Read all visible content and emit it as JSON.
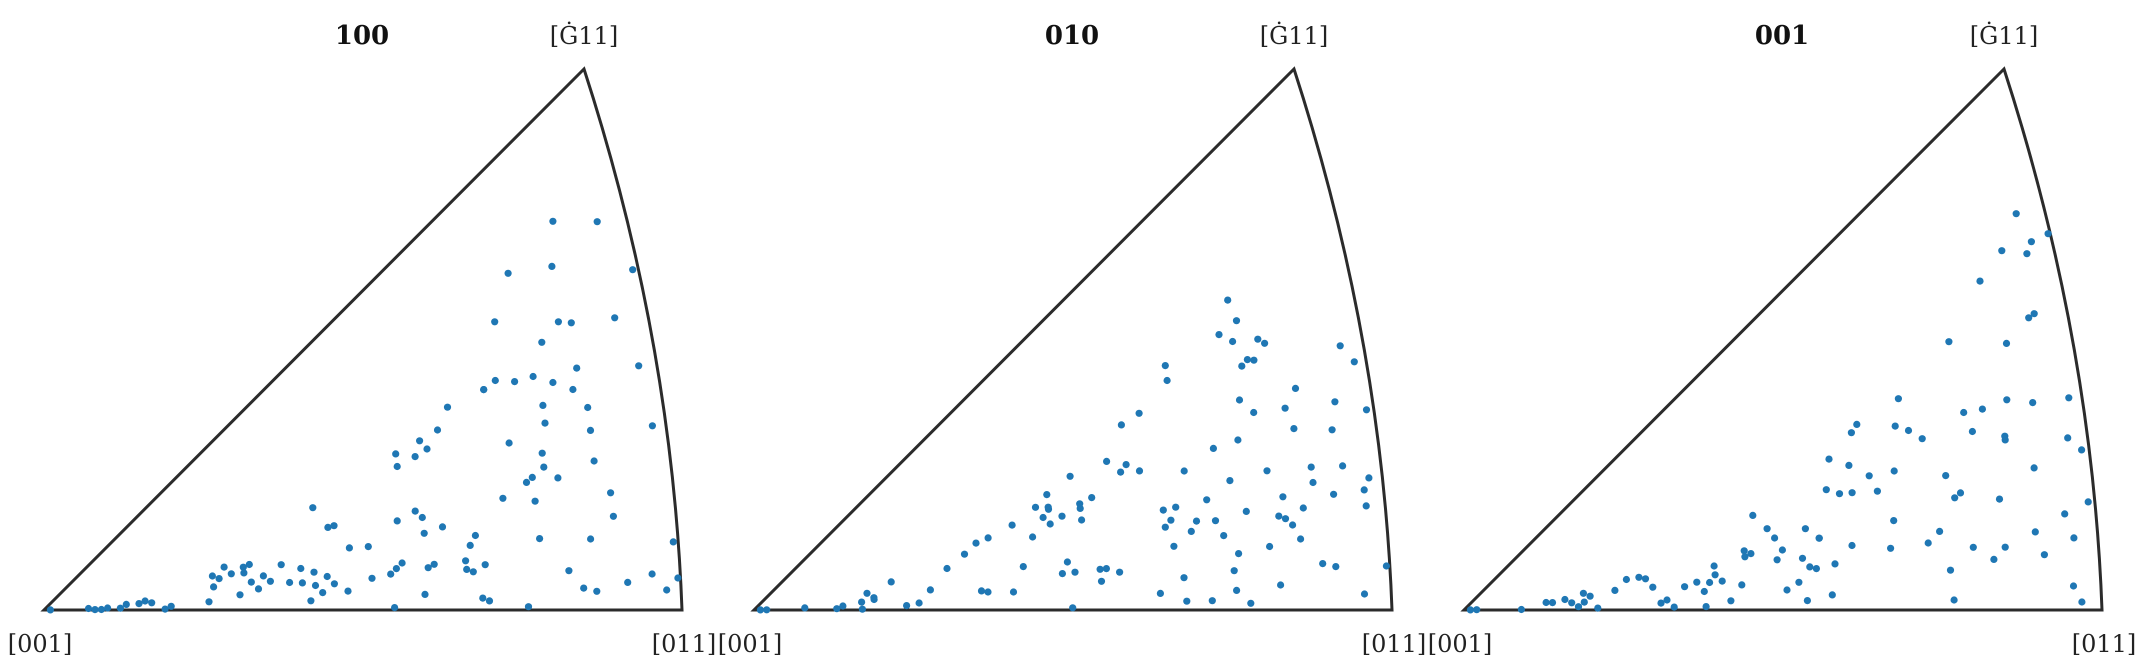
{
  "chart_data": [
    {
      "type": "scatter",
      "title": "100",
      "corner_labels": {
        "bottom_left": "[001]",
        "bottom_right": "[011]",
        "top": "[Ġ11]"
      },
      "marker_color": "#1f77b4",
      "points": [
        [
          0.01,
          0.01
        ],
        [
          0.07,
          0.04
        ],
        [
          0.08,
          0.01
        ],
        [
          0.09,
          0.01
        ],
        [
          0.1,
          0.04
        ],
        [
          0.12,
          0.03
        ],
        [
          0.13,
          0.09
        ],
        [
          0.15,
          0.09
        ],
        [
          0.16,
          0.12
        ],
        [
          0.17,
          0.09
        ],
        [
          0.19,
          0.01
        ],
        [
          0.2,
          0.04
        ],
        [
          0.26,
          0.07
        ],
        [
          0.27,
          0.19
        ],
        [
          0.27,
          0.28
        ],
        [
          0.28,
          0.25
        ],
        [
          0.29,
          0.33
        ],
        [
          0.3,
          0.27
        ],
        [
          0.31,
          0.11
        ],
        [
          0.32,
          0.3
        ],
        [
          0.32,
          0.26
        ],
        [
          0.33,
          0.31
        ],
        [
          0.33,
          0.19
        ],
        [
          0.34,
          0.14
        ],
        [
          0.35,
          0.22
        ],
        [
          0.36,
          0.18
        ],
        [
          0.38,
          0.27
        ],
        [
          0.39,
          0.16
        ],
        [
          0.41,
          0.15
        ],
        [
          0.41,
          0.23
        ],
        [
          0.42,
          0.05
        ],
        [
          0.43,
          0.2
        ],
        [
          0.43,
          0.13
        ],
        [
          0.44,
          0.09
        ],
        [
          0.44,
          0.53
        ],
        [
          0.45,
          0.17
        ],
        [
          0.46,
          0.13
        ],
        [
          0.46,
          0.41
        ],
        [
          0.47,
          0.41
        ],
        [
          0.48,
          0.09
        ],
        [
          0.49,
          0.29
        ],
        [
          0.52,
          0.28
        ],
        [
          0.52,
          0.14
        ],
        [
          0.55,
          0.15
        ],
        [
          0.55,
          0.01
        ],
        [
          0.56,
          0.17
        ],
        [
          0.57,
          0.36
        ],
        [
          0.57,
          0.19
        ],
        [
          0.58,
          0.57
        ],
        [
          0.58,
          0.62
        ],
        [
          0.6,
          0.38
        ],
        [
          0.6,
          0.06
        ],
        [
          0.61,
          0.35
        ],
        [
          0.61,
          0.58
        ],
        [
          0.61,
          0.29
        ],
        [
          0.61,
          0.16
        ],
        [
          0.62,
          0.17
        ],
        [
          0.62,
          0.63
        ],
        [
          0.63,
          0.59
        ],
        [
          0.64,
          0.3
        ],
        [
          0.65,
          0.64
        ],
        [
          0.67,
          0.17
        ],
        [
          0.67,
          0.7
        ],
        [
          0.67,
          0.14
        ],
        [
          0.68,
          0.13
        ],
        [
          0.68,
          0.22
        ],
        [
          0.69,
          0.04
        ],
        [
          0.69,
          0.25
        ],
        [
          0.7,
          0.15
        ],
        [
          0.7,
          0.03
        ],
        [
          0.73,
          0.7
        ],
        [
          0.73,
          0.7
        ],
        [
          0.74,
          0.35
        ],
        [
          0.75,
          0.71
        ],
        [
          0.76,
          0.88
        ],
        [
          0.76,
          0.51
        ],
        [
          0.76,
          0.01
        ],
        [
          0.78,
          0.38
        ],
        [
          0.78,
          0.68
        ],
        [
          0.79,
          0.21
        ],
        [
          0.79,
          0.99
        ],
        [
          0.79,
          0.32
        ],
        [
          0.79,
          0.39
        ],
        [
          0.81,
          0.41
        ],
        [
          0.81,
          0.45
        ],
        [
          0.81,
          0.67
        ],
        [
          0.82,
          0.58
        ],
        [
          0.82,
          0.53
        ],
        [
          0.83,
          0.37
        ],
        [
          0.83,
          0.75
        ],
        [
          0.83,
          0.11
        ],
        [
          0.84,
          0.63
        ],
        [
          0.85,
          0.06
        ],
        [
          0.86,
          0.93
        ],
        [
          0.86,
          0.78
        ],
        [
          0.87,
          0.19
        ],
        [
          0.87,
          1.04
        ],
        [
          0.87,
          0.05
        ],
        [
          0.87,
          0.59
        ],
        [
          0.88,
          0.64
        ],
        [
          0.88,
          0.76
        ],
        [
          0.89,
          0.47
        ],
        [
          0.89,
          0.53
        ],
        [
          0.89,
          0.39
        ],
        [
          0.91,
          0.24
        ],
        [
          0.91,
          0.3
        ],
        [
          0.92,
          0.07
        ],
        [
          0.94,
          0.97
        ],
        [
          0.95,
          0.73
        ],
        [
          0.96,
          0.09
        ],
        [
          0.98,
          0.05
        ],
        [
          0.98,
          0.61
        ],
        [
          0.99,
          0.46
        ],
        [
          0.99,
          0.85
        ],
        [
          1.0,
          0.17
        ],
        [
          1.0,
          0.08
        ]
      ]
    },
    {
      "type": "scatter",
      "title": "010",
      "corner_labels": {
        "bottom_left": "[001]",
        "bottom_right": "[011]",
        "top": "[Ġ11]"
      },
      "marker_color": "#1f77b4",
      "points": [
        [
          0.01,
          0.01
        ],
        [
          0.02,
          0.01
        ],
        [
          0.08,
          0.05
        ],
        [
          0.13,
          0.02
        ],
        [
          0.14,
          0.06
        ],
        [
          0.17,
          0.01
        ],
        [
          0.17,
          0.1
        ],
        [
          0.18,
          0.2
        ],
        [
          0.19,
          0.12
        ],
        [
          0.19,
          0.14
        ],
        [
          0.22,
          0.28
        ],
        [
          0.24,
          0.04
        ],
        [
          0.26,
          0.06
        ],
        [
          0.28,
          0.16
        ],
        [
          0.31,
          0.3
        ],
        [
          0.34,
          0.37
        ],
        [
          0.36,
          0.42
        ],
        [
          0.36,
          0.12
        ],
        [
          0.37,
          0.11
        ],
        [
          0.38,
          0.43
        ],
        [
          0.41,
          0.1
        ],
        [
          0.42,
          0.46
        ],
        [
          0.43,
          0.23
        ],
        [
          0.45,
          0.37
        ],
        [
          0.46,
          0.51
        ],
        [
          0.47,
          0.45
        ],
        [
          0.48,
          0.48
        ],
        [
          0.48,
          0.55
        ],
        [
          0.48,
          0.41
        ],
        [
          0.48,
          0.49
        ],
        [
          0.49,
          0.17
        ],
        [
          0.5,
          0.43
        ],
        [
          0.5,
          0.01
        ],
        [
          0.5,
          0.22
        ],
        [
          0.51,
          0.17
        ],
        [
          0.52,
          0.59
        ],
        [
          0.53,
          0.46
        ],
        [
          0.53,
          0.44
        ],
        [
          0.53,
          0.39
        ],
        [
          0.55,
          0.17
        ],
        [
          0.55,
          0.12
        ],
        [
          0.55,
          0.47
        ],
        [
          0.56,
          0.17
        ],
        [
          0.58,
          0.15
        ],
        [
          0.58,
          0.59
        ],
        [
          0.6,
          0.53
        ],
        [
          0.61,
          0.55
        ],
        [
          0.61,
          0.7
        ],
        [
          0.63,
          0.51
        ],
        [
          0.64,
          0.06
        ],
        [
          0.64,
          0.71
        ],
        [
          0.66,
          0.29
        ],
        [
          0.66,
          0.35
        ],
        [
          0.67,
          0.22
        ],
        [
          0.67,
          0.31
        ],
        [
          0.68,
          0.03
        ],
        [
          0.68,
          0.11
        ],
        [
          0.68,
          0.35
        ],
        [
          0.69,
          0.82
        ],
        [
          0.69,
          0.77
        ],
        [
          0.7,
          0.26
        ],
        [
          0.7,
          0.46
        ],
        [
          0.71,
          0.29
        ],
        [
          0.72,
          0.03
        ],
        [
          0.73,
          0.35
        ],
        [
          0.74,
          0.28
        ],
        [
          0.75,
          0.23
        ],
        [
          0.75,
          0.5
        ],
        [
          0.76,
          0.12
        ],
        [
          0.76,
          0.06
        ],
        [
          0.77,
          0.17
        ],
        [
          0.77,
          0.39
        ],
        [
          0.78,
          0.02
        ],
        [
          0.78,
          0.82
        ],
        [
          0.79,
          0.29
        ],
        [
          0.79,
          0.5
        ],
        [
          0.8,
          0.78
        ],
        [
          0.8,
          0.61
        ],
        [
          0.8,
          0.9
        ],
        [
          0.81,
          0.7
        ],
        [
          0.81,
          0.83
        ],
        [
          0.82,
          0.71
        ],
        [
          0.82,
          0.56
        ],
        [
          0.82,
          0.18
        ],
        [
          0.83,
          0.7
        ],
        [
          0.83,
          0.39
        ],
        [
          0.83,
          0.07
        ],
        [
          0.84,
          0.75
        ],
        [
          0.84,
          0.26
        ],
        [
          0.85,
          0.25
        ],
        [
          0.85,
          0.73
        ],
        [
          0.85,
          0.31
        ],
        [
          0.86,
          0.23
        ],
        [
          0.87,
          0.19
        ],
        [
          0.87,
          0.54
        ],
        [
          0.88,
          0.48
        ],
        [
          0.88,
          0.27
        ],
        [
          0.89,
          0.58
        ],
        [
          0.9,
          0.33
        ],
        [
          0.9,
          0.37
        ],
        [
          0.9,
          0.12
        ],
        [
          0.92,
          0.11
        ],
        [
          0.93,
          0.29
        ],
        [
          0.94,
          0.45
        ],
        [
          0.95,
          0.52
        ],
        [
          0.95,
          0.36
        ],
        [
          0.96,
          0.04
        ],
        [
          0.97,
          0.66
        ],
        [
          0.98,
          0.26
        ],
        [
          0.98,
          0.3
        ],
        [
          0.99,
          0.33
        ],
        [
          0.99,
          0.62
        ],
        [
          1.0,
          0.11
        ],
        [
          1.0,
          0.5
        ]
      ]
    },
    {
      "type": "scatter",
      "title": "001",
      "corner_labels": {
        "bottom_left": "[001]",
        "bottom_right": "[011]",
        "top": "[Ġ11]"
      },
      "marker_color": "#1f77b4",
      "points": [
        [
          0.01,
          0.01
        ],
        [
          0.02,
          0.02
        ],
        [
          0.09,
          0.01
        ],
        [
          0.13,
          0.12
        ],
        [
          0.14,
          0.11
        ],
        [
          0.16,
          0.14
        ],
        [
          0.17,
          0.09
        ],
        [
          0.18,
          0.04
        ],
        [
          0.19,
          0.09
        ],
        [
          0.19,
          0.19
        ],
        [
          0.2,
          0.15
        ],
        [
          0.21,
          0.02
        ],
        [
          0.24,
          0.18
        ],
        [
          0.26,
          0.26
        ],
        [
          0.28,
          0.26
        ],
        [
          0.29,
          0.24
        ],
        [
          0.3,
          0.17
        ],
        [
          0.31,
          0.05
        ],
        [
          0.32,
          0.07
        ],
        [
          0.33,
          0.02
        ],
        [
          0.35,
          0.15
        ],
        [
          0.37,
          0.17
        ],
        [
          0.38,
          0.02
        ],
        [
          0.38,
          0.11
        ],
        [
          0.39,
          0.16
        ],
        [
          0.4,
          0.25
        ],
        [
          0.4,
          0.2
        ],
        [
          0.41,
          0.16
        ],
        [
          0.42,
          0.05
        ],
        [
          0.44,
          0.13
        ],
        [
          0.45,
          0.3
        ],
        [
          0.45,
          0.27
        ],
        [
          0.46,
          0.28
        ],
        [
          0.47,
          0.46
        ],
        [
          0.49,
          0.38
        ],
        [
          0.5,
          0.33
        ],
        [
          0.5,
          0.23
        ],
        [
          0.51,
          0.27
        ],
        [
          0.51,
          0.09
        ],
        [
          0.53,
          0.12
        ],
        [
          0.54,
          0.04
        ],
        [
          0.54,
          0.22
        ],
        [
          0.55,
          0.18
        ],
        [
          0.55,
          0.34
        ],
        [
          0.56,
          0.17
        ],
        [
          0.57,
          0.29
        ],
        [
          0.57,
          0.29
        ],
        [
          0.58,
          0.06
        ],
        [
          0.59,
          0.18
        ],
        [
          0.59,
          0.47
        ],
        [
          0.6,
          0.58
        ],
        [
          0.61,
          0.44
        ],
        [
          0.62,
          0.24
        ],
        [
          0.63,
          0.43
        ],
        [
          0.63,
          0.53
        ],
        [
          0.64,
          0.64
        ],
        [
          0.65,
          0.66
        ],
        [
          0.66,
          0.47
        ],
        [
          0.67,
          0.41
        ],
        [
          0.68,
          0.21
        ],
        [
          0.69,
          0.3
        ],
        [
          0.7,
          0.46
        ],
        [
          0.71,
          0.6
        ],
        [
          0.72,
          0.68
        ],
        [
          0.73,
          0.57
        ],
        [
          0.74,
          0.21
        ],
        [
          0.75,
          0.53
        ],
        [
          0.76,
          0.24
        ],
        [
          0.77,
          0.03
        ],
        [
          0.77,
          0.12
        ],
        [
          0.78,
          0.4
        ],
        [
          0.79,
          0.33
        ],
        [
          0.8,
          0.34
        ],
        [
          0.81,
          0.18
        ],
        [
          0.81,
          0.77
        ],
        [
          0.82,
          0.56
        ],
        [
          0.83,
          0.5
        ],
        [
          0.84,
          0.14
        ],
        [
          0.85,
          0.55
        ],
        [
          0.86,
          0.17
        ],
        [
          0.86,
          0.3
        ],
        [
          0.87,
          0.88
        ],
        [
          0.88,
          0.45
        ],
        [
          0.88,
          0.46
        ],
        [
          0.89,
          0.55
        ],
        [
          0.9,
          0.69
        ],
        [
          0.91,
          0.2
        ],
        [
          0.91,
          0.92
        ],
        [
          0.92,
          0.36
        ],
        [
          0.92,
          0.14
        ],
        [
          0.93,
          0.52
        ],
        [
          0.94,
          0.73
        ],
        [
          0.94,
          0.99
        ],
        [
          0.95,
          0.74
        ],
        [
          0.96,
          0.24
        ],
        [
          0.96,
          0.06
        ],
        [
          0.97,
          0.02
        ],
        [
          0.97,
          0.18
        ],
        [
          0.98,
          0.43
        ],
        [
          0.99,
          0.94
        ],
        [
          0.99,
          0.53
        ],
        [
          1.0,
          0.27
        ],
        [
          1.0,
          0.4
        ],
        [
          0.96,
          0.92
        ],
        [
          0.95,
          0.89
        ]
      ]
    }
  ]
}
